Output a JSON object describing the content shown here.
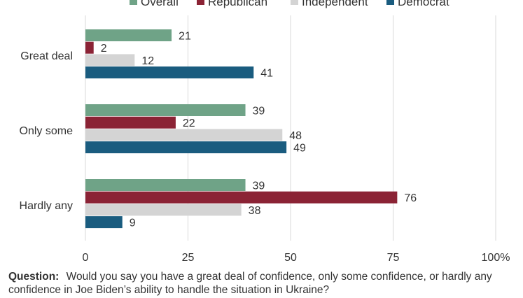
{
  "chart_data": {
    "type": "bar",
    "orientation": "horizontal",
    "categories": [
      "Great deal",
      "Only some",
      "Hardly any"
    ],
    "series": [
      {
        "name": "Overall",
        "color": "#6fa387",
        "values": [
          21,
          39,
          39
        ]
      },
      {
        "name": "Republican",
        "color": "#8b2335",
        "values": [
          2,
          22,
          76
        ]
      },
      {
        "name": "Independent",
        "color": "#d4d4d4",
        "values": [
          12,
          48,
          38
        ]
      },
      {
        "name": "Democrat",
        "color": "#1a5c7f",
        "values": [
          41,
          49,
          9
        ]
      }
    ],
    "xlim": [
      0,
      100
    ],
    "x_ticks": [
      "0",
      "25",
      "50",
      "75",
      "100%"
    ],
    "x_tick_values": [
      0,
      25,
      50,
      75,
      100
    ],
    "grid": true,
    "legend_position": "top",
    "data_labels": true
  },
  "question": {
    "label": "Question:",
    "text": "Would you say you have a great deal of confidence, only some confidence, or hardly any confidence in Joe Biden’s ability to handle the situation in Ukraine?"
  }
}
